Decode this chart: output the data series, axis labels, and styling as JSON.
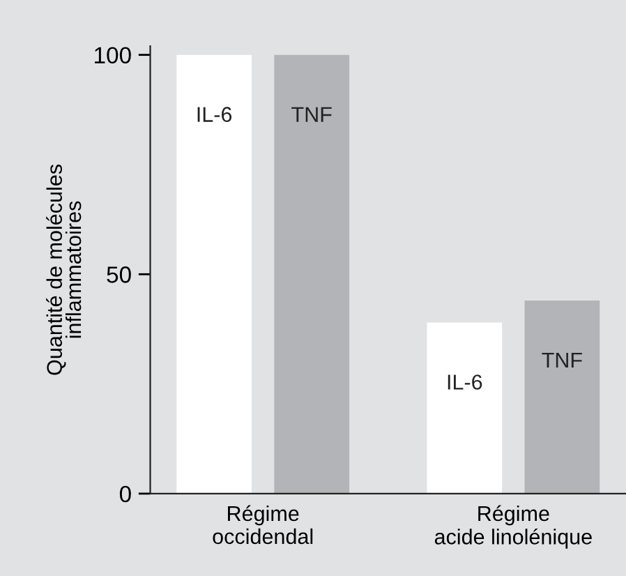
{
  "chart_data": {
    "type": "bar",
    "ylabel": "Quantité de molécules\ninflammatoires",
    "categories": [
      "Régime\noccidendal",
      "Régime\nacide linolénique"
    ],
    "series": [
      {
        "name": "IL-6",
        "color": "#ffffff",
        "values": [
          100,
          39
        ]
      },
      {
        "name": "TNF",
        "color": "#b3b4b7",
        "values": [
          100,
          44
        ]
      }
    ],
    "ylim": [
      0,
      102
    ],
    "yticks": [
      0,
      50,
      100
    ],
    "grid": false,
    "legend": false
  }
}
